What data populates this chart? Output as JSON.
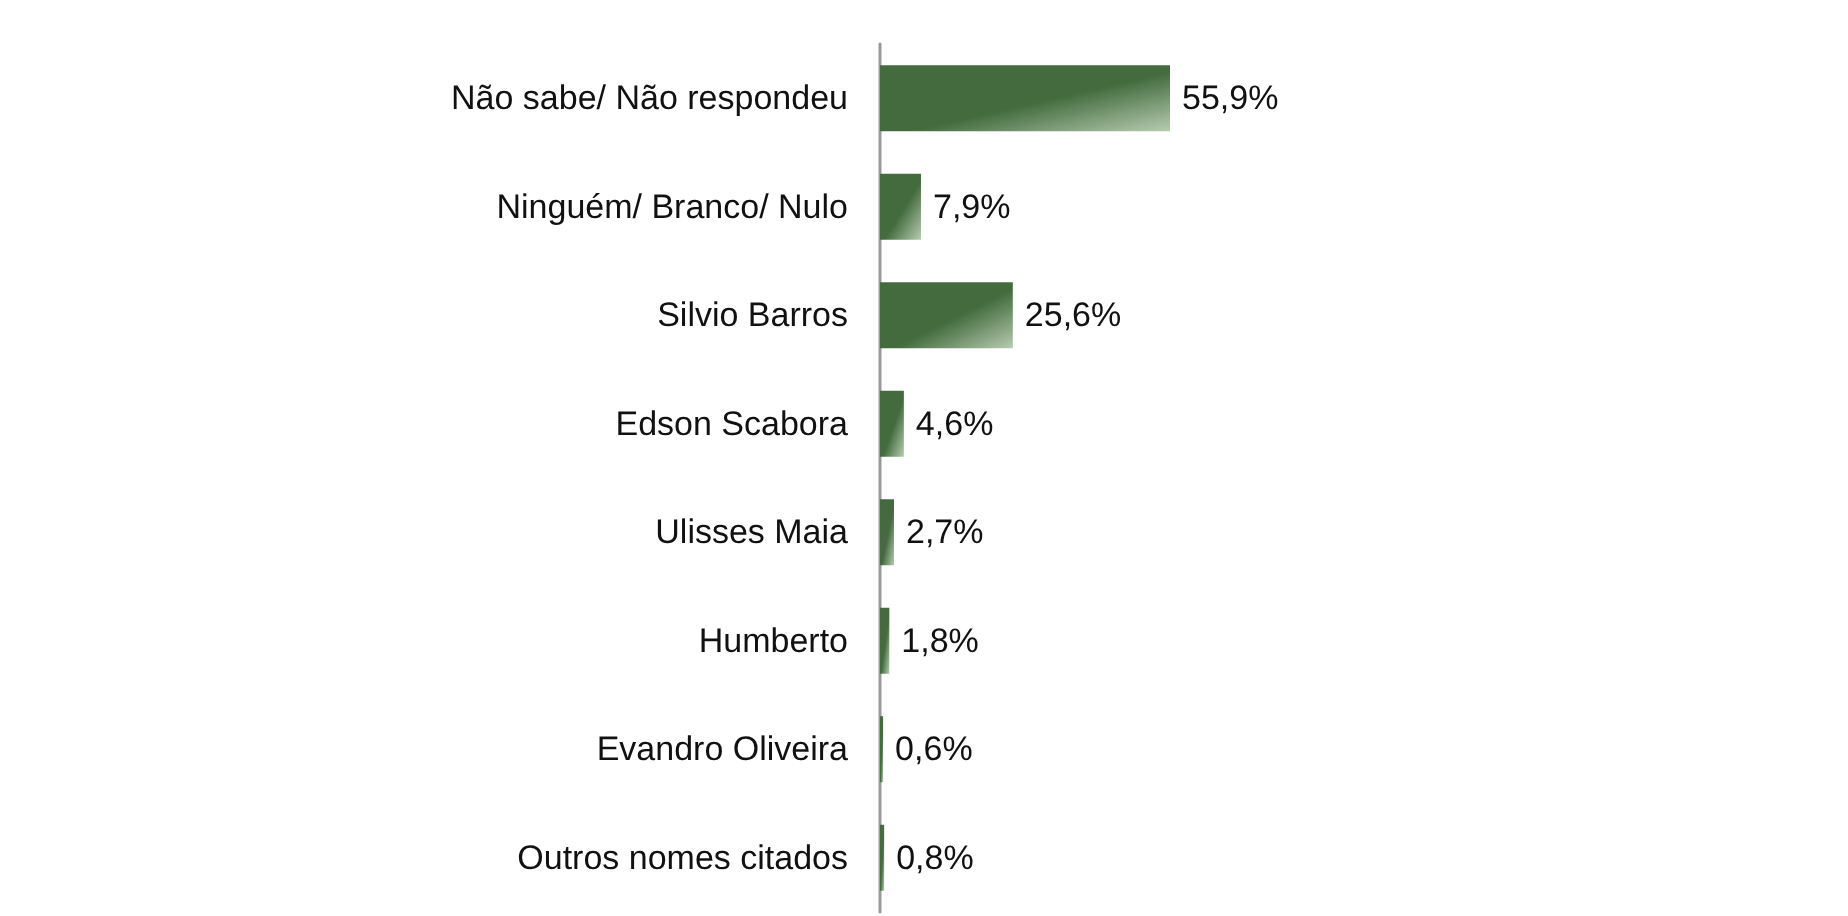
{
  "chart_data": {
    "type": "bar",
    "orientation": "horizontal",
    "categories": [
      "Não sabe/ Não respondeu",
      "Ninguém/ Branco/ Nulo",
      "Silvio Barros",
      "Edson Scabora",
      "Ulisses Maia",
      "Humberto",
      "Evandro Oliveira",
      "Outros nomes citados"
    ],
    "values": [
      55.9,
      7.9,
      25.6,
      4.6,
      2.7,
      1.8,
      0.6,
      0.8
    ],
    "value_labels": [
      "55,9%",
      "7,9%",
      "25,6%",
      "4,6%",
      "2,7%",
      "1,8%",
      "0,6%",
      "0,8%"
    ],
    "color": "#436b3e"
  }
}
